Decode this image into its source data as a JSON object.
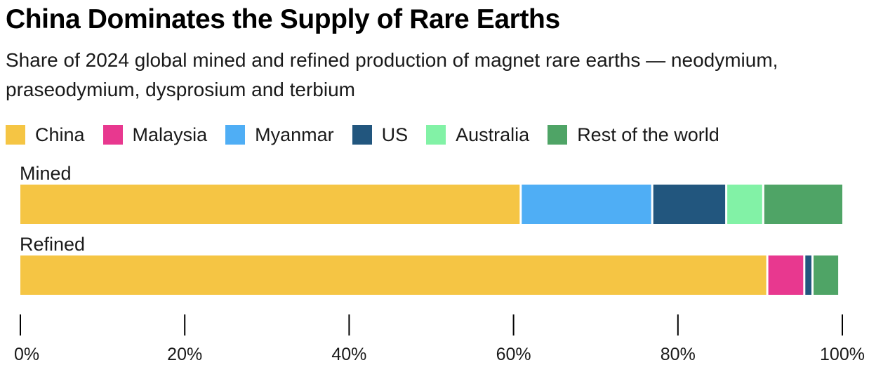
{
  "title": "China Dominates the Supply of Rare Earths",
  "subtitle": "Share of 2024 global mined and refined production of magnet rare earths — neodymium, praseodymium, dysprosium and terbium",
  "chart_data": {
    "type": "bar",
    "orientation": "horizontal",
    "stacked": true,
    "categories": [
      "Mined",
      "Refined"
    ],
    "series": [
      {
        "name": "China",
        "color": "#f5c544",
        "values": [
          61,
          91
        ]
      },
      {
        "name": "Malaysia",
        "color": "#e8388f",
        "values": [
          0,
          4.5
        ]
      },
      {
        "name": "Myanmar",
        "color": "#4faef5",
        "values": [
          16,
          0
        ]
      },
      {
        "name": "US",
        "color": "#22567e",
        "values": [
          9,
          1
        ]
      },
      {
        "name": "Australia",
        "color": "#82f2a6",
        "values": [
          4.5,
          0
        ]
      },
      {
        "name": "Rest of the world",
        "color": "#4fa466",
        "values": [
          9.5,
          3
        ]
      }
    ],
    "xlim": [
      0,
      100
    ],
    "xticks": [
      "0%",
      "20%",
      "40%",
      "60%",
      "80%",
      "100%"
    ],
    "legend_position": "top",
    "grid": false
  }
}
